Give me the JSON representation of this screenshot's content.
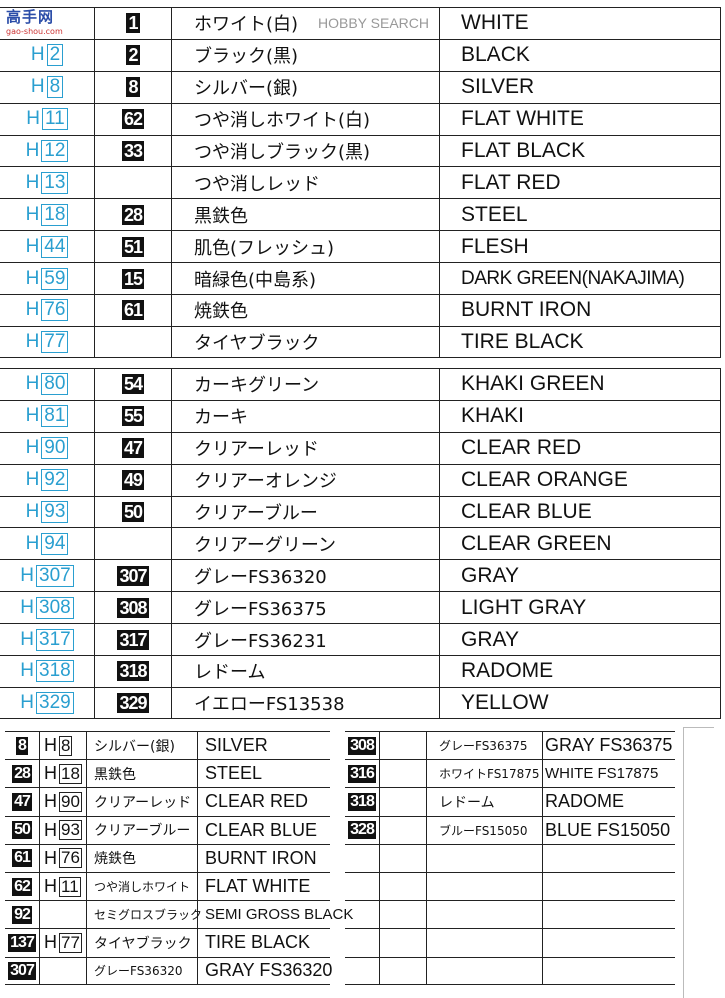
{
  "watermark": {
    "site_cn": "高手网",
    "site_en": "HOBBY SEARCH",
    "url": "gao-shou.com"
  },
  "colors": {
    "hobby_code": "#2a9fd0",
    "badge_bg": "#111111"
  },
  "main_table": {
    "sections": [
      [
        {
          "h": "",
          "m": "1",
          "jp": "ホワイト(白)",
          "en": "WHITE"
        },
        {
          "h": "2",
          "m": "2",
          "jp": "ブラック(黒)",
          "en": "BLACK"
        },
        {
          "h": "8",
          "m": "8",
          "jp": "シルバー(銀)",
          "en": "SILVER"
        },
        {
          "h": "11",
          "m": "62",
          "jp": "つや消しホワイト(白)",
          "en": "FLAT WHITE"
        },
        {
          "h": "12",
          "m": "33",
          "jp": "つや消しブラック(黒)",
          "en": "FLAT BLACK"
        },
        {
          "h": "13",
          "m": "",
          "jp": "つや消しレッド",
          "en": "FLAT RED"
        },
        {
          "h": "18",
          "m": "28",
          "jp": "黒鉄色",
          "en": "STEEL"
        },
        {
          "h": "44",
          "m": "51",
          "jp": "肌色(フレッシュ)",
          "en": "FLESH"
        },
        {
          "h": "59",
          "m": "15",
          "jp": "暗緑色(中島系)",
          "en": "DARK GREEN(NAKAJIMA)"
        },
        {
          "h": "76",
          "m": "61",
          "jp": "焼鉄色",
          "en": "BURNT IRON"
        },
        {
          "h": "77",
          "m": "",
          "jp": "タイヤブラック",
          "en": "TIRE BLACK"
        }
      ],
      [
        {
          "h": "80",
          "m": "54",
          "jp": "カーキグリーン",
          "en": "KHAKI GREEN"
        },
        {
          "h": "81",
          "m": "55",
          "jp": "カーキ",
          "en": "KHAKI"
        },
        {
          "h": "90",
          "m": "47",
          "jp": "クリアーレッド",
          "en": "CLEAR RED"
        },
        {
          "h": "92",
          "m": "49",
          "jp": "クリアーオレンジ",
          "en": "CLEAR ORANGE"
        },
        {
          "h": "93",
          "m": "50",
          "jp": "クリアーブルー",
          "en": "CLEAR BLUE"
        },
        {
          "h": "94",
          "m": "",
          "jp": "クリアーグリーン",
          "en": "CLEAR GREEN"
        },
        {
          "h": "307",
          "m": "307",
          "jp": "グレーFS36320",
          "en": "GRAY"
        },
        {
          "h": "308",
          "m": "308",
          "jp": "グレーFS36375",
          "en": "LIGHT GRAY"
        },
        {
          "h": "317",
          "m": "317",
          "jp": "グレーFS36231",
          "en": "GRAY"
        },
        {
          "h": "318",
          "m": "318",
          "jp": "レドーム",
          "en": "RADOME"
        },
        {
          "h": "329",
          "m": "329",
          "jp": "イエローFS13538",
          "en": "YELLOW"
        }
      ]
    ]
  },
  "bottom_left": [
    {
      "m": "8",
      "h": "8",
      "jp": "シルバー(銀)",
      "en": "SILVER"
    },
    {
      "m": "28",
      "h": "18",
      "jp": "黒鉄色",
      "en": "STEEL"
    },
    {
      "m": "47",
      "h": "90",
      "jp": "クリアーレッド",
      "en": "CLEAR RED"
    },
    {
      "m": "50",
      "h": "93",
      "jp": "クリアーブルー",
      "en": "CLEAR BLUE"
    },
    {
      "m": "61",
      "h": "76",
      "jp": "焼鉄色",
      "en": "BURNT IRON"
    },
    {
      "m": "62",
      "h": "11",
      "jp": "つや消しホワイト",
      "en": "FLAT WHITE"
    },
    {
      "m": "92",
      "h": "",
      "jp": "セミグロスブラック",
      "en": "SEMI GROSS BLACK"
    },
    {
      "m": "137",
      "h": "77",
      "jp": "タイヤブラック",
      "en": "TIRE BLACK"
    },
    {
      "m": "307",
      "h": "",
      "jp": "グレーFS36320",
      "en": "GRAY FS36320"
    }
  ],
  "bottom_right": [
    {
      "m": "308",
      "h": "",
      "jp": "グレーFS36375",
      "en": "GRAY FS36375"
    },
    {
      "m": "316",
      "h": "",
      "jp": "ホワイトFS17875",
      "en": "WHITE FS17875"
    },
    {
      "m": "318",
      "h": "",
      "jp": "レドーム",
      "en": "RADOME"
    },
    {
      "m": "328",
      "h": "",
      "jp": "ブルーFS15050",
      "en": "BLUE FS15050"
    },
    {
      "m": "",
      "h": "",
      "jp": "",
      "en": ""
    },
    {
      "m": "",
      "h": "",
      "jp": "",
      "en": ""
    },
    {
      "m": "",
      "h": "",
      "jp": "",
      "en": ""
    },
    {
      "m": "",
      "h": "",
      "jp": "",
      "en": ""
    },
    {
      "m": "",
      "h": "",
      "jp": "",
      "en": ""
    }
  ],
  "h_prefix": "H"
}
